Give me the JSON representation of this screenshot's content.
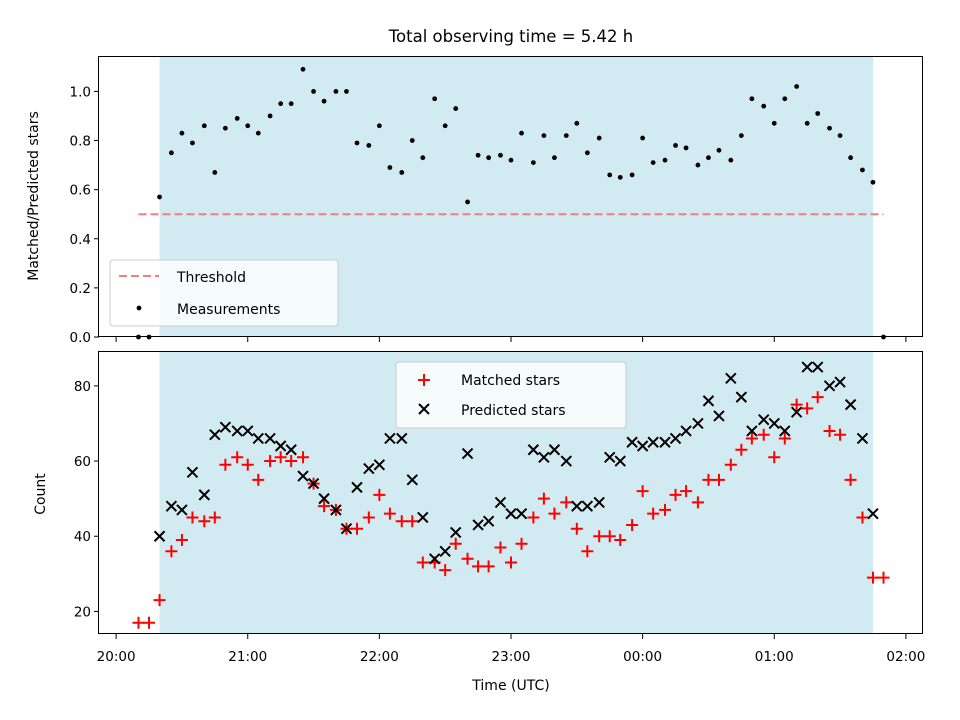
{
  "chart_data": [
    {
      "type": "scatter",
      "title": "Total observing time = 5.42 h",
      "xlabel": "",
      "ylabel": "Matched/Predicted stars",
      "ylim": [
        0,
        1.14
      ],
      "yticks": [
        "0.0",
        "0.2",
        "0.4",
        "0.6",
        "0.8",
        "1.0"
      ],
      "threshold": {
        "name": "Threshold",
        "value": 0.5,
        "x_range": [
          20.17,
          25.83
        ],
        "color": "#f08080"
      },
      "shaded_interval": {
        "start": 20.33,
        "end": 25.75,
        "color": "#add8e6"
      },
      "legend": {
        "position": "lower left",
        "entries": [
          "Threshold",
          "Measurements"
        ]
      },
      "series": [
        {
          "name": "Measurements",
          "color": "#000000",
          "points": [
            [
              20.17,
              0.0
            ],
            [
              20.25,
              0.0
            ],
            [
              20.33,
              0.57
            ],
            [
              20.42,
              0.75
            ],
            [
              20.5,
              0.83
            ],
            [
              20.58,
              0.79
            ],
            [
              20.67,
              0.86
            ],
            [
              20.75,
              0.67
            ],
            [
              20.83,
              0.85
            ],
            [
              20.92,
              0.89
            ],
            [
              21.0,
              0.86
            ],
            [
              21.08,
              0.83
            ],
            [
              21.17,
              0.9
            ],
            [
              21.25,
              0.95
            ],
            [
              21.33,
              0.95
            ],
            [
              21.42,
              1.09
            ],
            [
              21.5,
              1.0
            ],
            [
              21.58,
              0.96
            ],
            [
              21.67,
              1.0
            ],
            [
              21.75,
              1.0
            ],
            [
              21.83,
              0.79
            ],
            [
              21.92,
              0.78
            ],
            [
              22.0,
              0.86
            ],
            [
              22.08,
              0.69
            ],
            [
              22.17,
              0.67
            ],
            [
              22.25,
              0.8
            ],
            [
              22.33,
              0.73
            ],
            [
              22.42,
              0.97
            ],
            [
              22.5,
              0.86
            ],
            [
              22.58,
              0.93
            ],
            [
              22.67,
              0.55
            ],
            [
              22.75,
              0.74
            ],
            [
              22.83,
              0.73
            ],
            [
              22.92,
              0.74
            ],
            [
              23.0,
              0.72
            ],
            [
              23.08,
              0.83
            ],
            [
              23.17,
              0.71
            ],
            [
              23.25,
              0.82
            ],
            [
              23.33,
              0.73
            ],
            [
              23.42,
              0.82
            ],
            [
              23.5,
              0.87
            ],
            [
              23.58,
              0.75
            ],
            [
              23.67,
              0.81
            ],
            [
              23.75,
              0.66
            ],
            [
              23.83,
              0.65
            ],
            [
              23.92,
              0.66
            ],
            [
              24.0,
              0.81
            ],
            [
              24.08,
              0.71
            ],
            [
              24.17,
              0.72
            ],
            [
              24.25,
              0.78
            ],
            [
              24.33,
              0.77
            ],
            [
              24.42,
              0.7
            ],
            [
              24.5,
              0.73
            ],
            [
              24.58,
              0.76
            ],
            [
              24.67,
              0.72
            ],
            [
              24.75,
              0.82
            ],
            [
              24.83,
              0.97
            ],
            [
              24.92,
              0.94
            ],
            [
              25.0,
              0.87
            ],
            [
              25.08,
              0.97
            ],
            [
              25.17,
              1.02
            ],
            [
              25.25,
              0.87
            ],
            [
              25.33,
              0.91
            ],
            [
              25.42,
              0.85
            ],
            [
              25.5,
              0.82
            ],
            [
              25.58,
              0.73
            ],
            [
              25.67,
              0.68
            ],
            [
              25.75,
              0.63
            ],
            [
              25.83,
              0.0
            ]
          ]
        }
      ]
    },
    {
      "type": "scatter",
      "title": "",
      "xlabel": "Time (UTC)",
      "ylabel": "Count",
      "ylim": [
        14,
        89
      ],
      "yticks": [
        "20",
        "40",
        "60",
        "80"
      ],
      "xlim": [
        19.87,
        26.13
      ],
      "xticks": [
        {
          "value": 20,
          "label": "20:00"
        },
        {
          "value": 21,
          "label": "21:00"
        },
        {
          "value": 22,
          "label": "22:00"
        },
        {
          "value": 23,
          "label": "23:00"
        },
        {
          "value": 24,
          "label": "00:00"
        },
        {
          "value": 25,
          "label": "01:00"
        },
        {
          "value": 26,
          "label": "02:00"
        }
      ],
      "shaded_interval": {
        "start": 20.33,
        "end": 25.75,
        "color": "#add8e6"
      },
      "legend": {
        "position": "upper center",
        "entries": [
          "Matched stars",
          "Predicted stars"
        ]
      },
      "series": [
        {
          "name": "Matched stars",
          "marker": "+",
          "color": "#ff0000",
          "points": [
            [
              20.17,
              17
            ],
            [
              20.25,
              17
            ],
            [
              20.33,
              23
            ],
            [
              20.42,
              36
            ],
            [
              20.5,
              39
            ],
            [
              20.58,
              45
            ],
            [
              20.67,
              44
            ],
            [
              20.75,
              45
            ],
            [
              20.83,
              59
            ],
            [
              20.92,
              61
            ],
            [
              21.0,
              59
            ],
            [
              21.08,
              55
            ],
            [
              21.17,
              60
            ],
            [
              21.25,
              61
            ],
            [
              21.33,
              60
            ],
            [
              21.42,
              61
            ],
            [
              21.5,
              54
            ],
            [
              21.58,
              48
            ],
            [
              21.67,
              47
            ],
            [
              21.75,
              42
            ],
            [
              21.83,
              42
            ],
            [
              21.92,
              45
            ],
            [
              22.0,
              51
            ],
            [
              22.08,
              46
            ],
            [
              22.17,
              44
            ],
            [
              22.25,
              44
            ],
            [
              22.33,
              33
            ],
            [
              22.42,
              33
            ],
            [
              22.5,
              31
            ],
            [
              22.58,
              38
            ],
            [
              22.67,
              34
            ],
            [
              22.75,
              32
            ],
            [
              22.83,
              32
            ],
            [
              22.92,
              37
            ],
            [
              23.0,
              33
            ],
            [
              23.08,
              38
            ],
            [
              23.17,
              45
            ],
            [
              23.25,
              50
            ],
            [
              23.33,
              46
            ],
            [
              23.42,
              49
            ],
            [
              23.5,
              42
            ],
            [
              23.58,
              36
            ],
            [
              23.67,
              40
            ],
            [
              23.75,
              40
            ],
            [
              23.83,
              39
            ],
            [
              23.92,
              43
            ],
            [
              24.0,
              52
            ],
            [
              24.08,
              46
            ],
            [
              24.17,
              47
            ],
            [
              24.25,
              51
            ],
            [
              24.33,
              52
            ],
            [
              24.42,
              49
            ],
            [
              24.5,
              55
            ],
            [
              24.58,
              55
            ],
            [
              24.67,
              59
            ],
            [
              24.75,
              63
            ],
            [
              24.83,
              66
            ],
            [
              24.92,
              67
            ],
            [
              25.0,
              61
            ],
            [
              25.08,
              66
            ],
            [
              25.17,
              75
            ],
            [
              25.25,
              74
            ],
            [
              25.33,
              77
            ],
            [
              25.42,
              68
            ],
            [
              25.5,
              67
            ],
            [
              25.58,
              55
            ],
            [
              25.67,
              45
            ],
            [
              25.75,
              29
            ],
            [
              25.83,
              29
            ]
          ]
        },
        {
          "name": "Predicted stars",
          "marker": "x",
          "color": "#000000",
          "points": [
            [
              20.33,
              40
            ],
            [
              20.42,
              48
            ],
            [
              20.5,
              47
            ],
            [
              20.58,
              57
            ],
            [
              20.67,
              51
            ],
            [
              20.75,
              67
            ],
            [
              20.83,
              69
            ],
            [
              20.92,
              68
            ],
            [
              21.0,
              68
            ],
            [
              21.08,
              66
            ],
            [
              21.17,
              66
            ],
            [
              21.25,
              64
            ],
            [
              21.33,
              63
            ],
            [
              21.42,
              56
            ],
            [
              21.5,
              54
            ],
            [
              21.58,
              50
            ],
            [
              21.67,
              47
            ],
            [
              21.75,
              42
            ],
            [
              21.83,
              53
            ],
            [
              21.92,
              58
            ],
            [
              22.0,
              59
            ],
            [
              22.08,
              66
            ],
            [
              22.17,
              66
            ],
            [
              22.25,
              55
            ],
            [
              22.33,
              45
            ],
            [
              22.42,
              34
            ],
            [
              22.5,
              36
            ],
            [
              22.58,
              41
            ],
            [
              22.67,
              62
            ],
            [
              22.75,
              43
            ],
            [
              22.83,
              44
            ],
            [
              22.92,
              49
            ],
            [
              23.0,
              46
            ],
            [
              23.08,
              46
            ],
            [
              23.17,
              63
            ],
            [
              23.25,
              61
            ],
            [
              23.33,
              63
            ],
            [
              23.42,
              60
            ],
            [
              23.5,
              48
            ],
            [
              23.58,
              48
            ],
            [
              23.67,
              49
            ],
            [
              23.75,
              61
            ],
            [
              23.83,
              60
            ],
            [
              23.92,
              65
            ],
            [
              24.0,
              64
            ],
            [
              24.08,
              65
            ],
            [
              24.17,
              65
            ],
            [
              24.25,
              66
            ],
            [
              24.33,
              68
            ],
            [
              24.42,
              70
            ],
            [
              24.5,
              76
            ],
            [
              24.58,
              72
            ],
            [
              24.67,
              82
            ],
            [
              24.75,
              77
            ],
            [
              24.83,
              68
            ],
            [
              24.92,
              71
            ],
            [
              25.0,
              70
            ],
            [
              25.08,
              68
            ],
            [
              25.17,
              73
            ],
            [
              25.25,
              85
            ],
            [
              25.33,
              85
            ],
            [
              25.42,
              80
            ],
            [
              25.5,
              81
            ],
            [
              25.58,
              75
            ],
            [
              25.67,
              66
            ],
            [
              25.75,
              46
            ]
          ]
        }
      ]
    }
  ]
}
